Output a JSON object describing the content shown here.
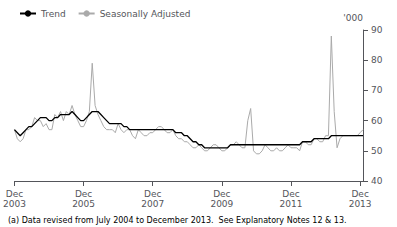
{
  "chart_data": {
    "type": "line",
    "ylabel": "'000",
    "annotations": [
      "(a) Data revised from July 2004 to December 2013.  See Explanatory Notes 12 & 13."
    ],
    "categories": [
      "Dec\n2003",
      null,
      null,
      null,
      null,
      null,
      null,
      null,
      null,
      null,
      null,
      null,
      null,
      null,
      null,
      null,
      null,
      null,
      null,
      null,
      null,
      null,
      null,
      null,
      "Dec\n2005",
      null,
      null,
      null,
      null,
      null,
      null,
      null,
      null,
      null,
      null,
      null,
      null,
      null,
      null,
      null,
      null,
      null,
      null,
      null,
      null,
      null,
      null,
      null,
      "Dec\n2007",
      null,
      null,
      null,
      null,
      null,
      null,
      null,
      null,
      null,
      null,
      null,
      null,
      null,
      null,
      null,
      null,
      null,
      null,
      null,
      null,
      null,
      null,
      null,
      "Dec\n2009",
      null,
      null,
      null,
      null,
      null,
      null,
      null,
      null,
      null,
      null,
      null,
      null,
      null,
      null,
      null,
      null,
      null,
      null,
      null,
      null,
      null,
      null,
      null,
      "Dec\n2011",
      null,
      null,
      null,
      null,
      null,
      null,
      null,
      null,
      null,
      null,
      null,
      null,
      null,
      null,
      null,
      null,
      null,
      null,
      null,
      null,
      null,
      null,
      null,
      "Dec\n2013",
      null
    ],
    "series": [
      {
        "name": "Trend",
        "color": "#000000",
        "values": [
          57,
          56,
          55,
          56,
          57,
          58,
          58,
          59,
          60,
          61,
          61,
          61,
          60,
          60,
          61,
          61,
          62,
          62,
          62,
          62,
          63,
          62,
          61,
          60,
          60,
          61,
          62,
          63,
          63,
          63,
          62,
          61,
          60,
          59,
          59,
          59,
          59,
          59,
          58,
          58,
          57,
          57,
          57,
          57,
          57,
          57,
          57,
          57,
          57,
          57,
          57,
          57,
          57,
          57,
          57,
          57,
          56,
          56,
          56,
          55,
          55,
          54,
          53,
          53,
          52,
          52,
          51,
          51,
          51,
          51,
          51,
          51,
          51,
          51,
          51,
          52,
          52,
          52,
          52,
          52,
          52,
          52,
          52,
          52,
          52,
          52,
          52,
          52,
          52,
          52,
          52,
          52,
          52,
          52,
          52,
          52,
          52,
          52,
          52,
          52,
          53,
          53,
          53,
          53,
          54,
          54,
          54,
          54,
          54,
          54,
          55,
          55,
          55,
          55,
          55,
          55,
          55,
          55,
          55,
          55,
          55,
          55
        ]
      },
      {
        "name": "Seasonally Adjusted",
        "color": "#aaaaaa",
        "values": [
          57,
          54,
          53,
          54,
          57,
          57,
          58,
          61,
          60,
          60,
          58,
          59,
          57,
          57,
          62,
          61,
          63,
          60,
          63,
          62,
          65,
          62,
          60,
          58,
          58,
          60,
          63,
          79,
          65,
          62,
          60,
          58,
          57,
          57,
          57,
          56,
          59,
          57,
          56,
          57,
          57,
          55,
          54,
          57,
          56,
          55,
          55,
          56,
          56,
          57,
          58,
          58,
          57,
          56,
          56,
          57,
          55,
          54,
          54,
          53,
          53,
          52,
          51,
          51,
          52,
          51,
          50,
          50,
          51,
          52,
          52,
          51,
          50,
          50,
          51,
          52,
          52,
          53,
          52,
          51,
          51,
          60,
          64,
          50,
          49,
          49,
          50,
          52,
          51,
          50,
          50,
          51,
          50,
          50,
          51,
          52,
          51,
          51,
          51,
          50,
          53,
          53,
          52,
          52,
          54,
          54,
          53,
          53,
          55,
          55,
          88,
          63,
          51,
          54,
          55,
          55,
          55,
          55,
          55,
          55,
          56,
          57
        ]
      }
    ],
    "ylim": [
      40,
      90
    ],
    "yticks": [
      40,
      50,
      60,
      70,
      80,
      90
    ],
    "grid": false,
    "legend": "upper left"
  }
}
